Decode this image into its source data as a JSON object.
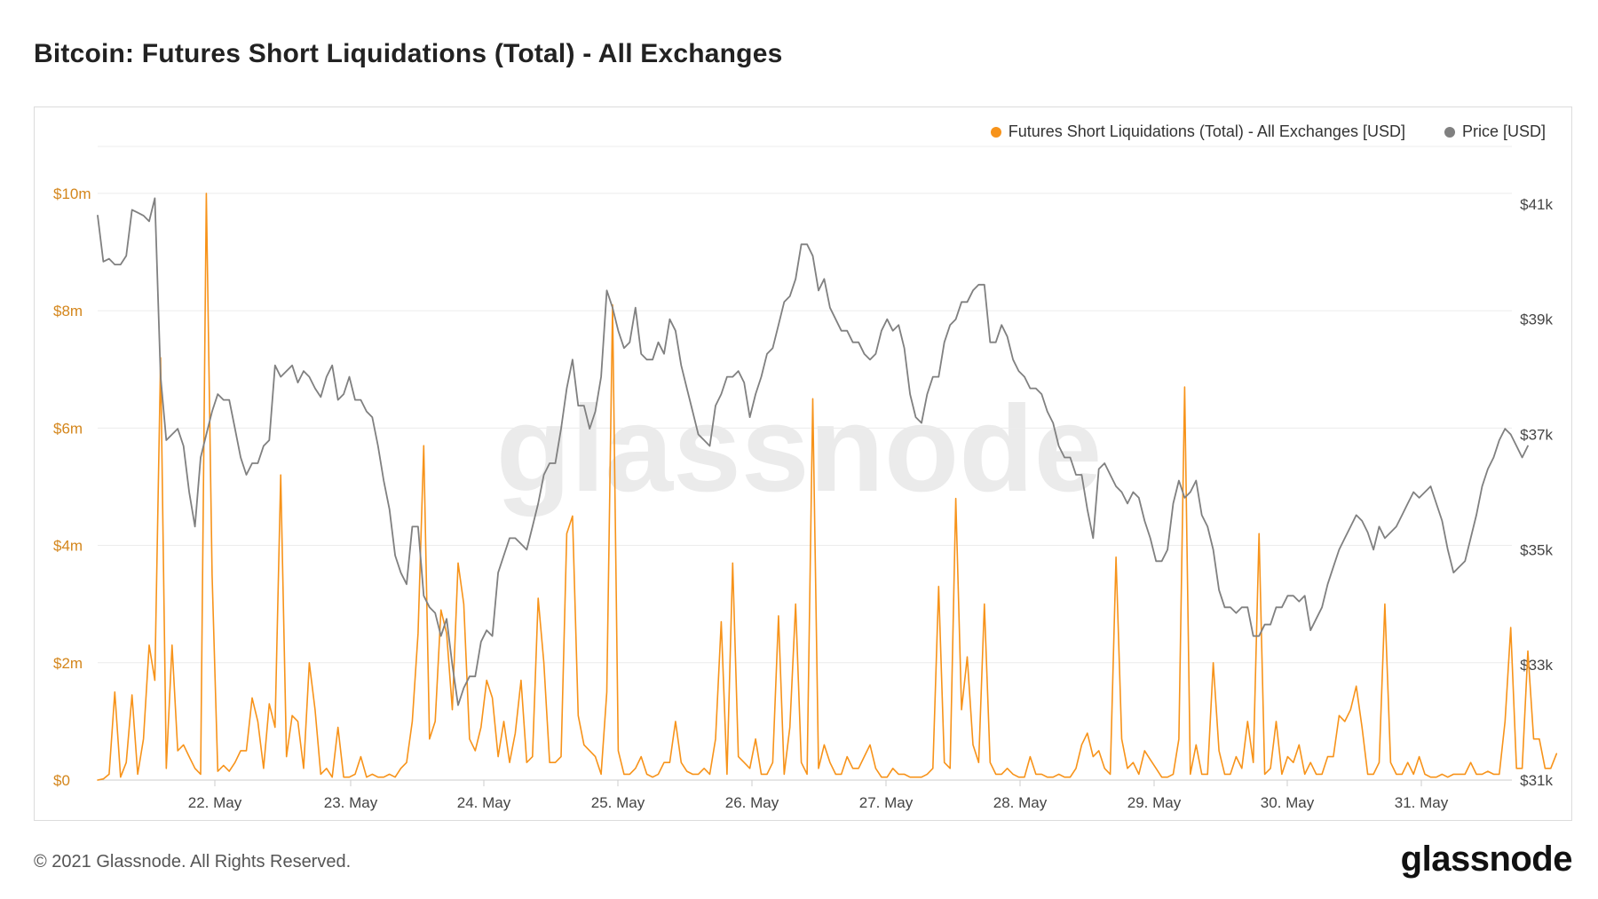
{
  "title": "Bitcoin: Futures Short Liquidations (Total) - All Exchanges",
  "watermark": "glassnode",
  "footer": {
    "copyright": "© 2021 Glassnode. All Rights Reserved.",
    "logo": "glassnode"
  },
  "colors": {
    "liquidations": "#f7931a",
    "price": "#808080",
    "left_axis_text": "#d4861c",
    "grid": "#ececec",
    "watermark": "#ebebeb"
  },
  "chart_data": {
    "type": "line",
    "x_ticks": [
      "22. May",
      "23. May",
      "24. May",
      "25. May",
      "26. May",
      "27. May",
      "28. May",
      "29. May",
      "30. May",
      "31. May"
    ],
    "x_range_days": [
      21.35,
      31.65
    ],
    "left_axis": {
      "ticks": [
        "$0",
        "$2m",
        "$4m",
        "$6m",
        "$8m",
        "$10m"
      ],
      "tick_values": [
        0,
        2000000,
        4000000,
        6000000,
        8000000,
        10000000
      ],
      "ylim": [
        0,
        10800000
      ]
    },
    "right_axis": {
      "ticks": [
        "$31k",
        "$33k",
        "$35k",
        "$37k",
        "$39k",
        "$41k"
      ],
      "tick_values": [
        31000,
        33000,
        35000,
        37000,
        39000,
        41000
      ],
      "ylim": [
        31000,
        42000
      ]
    },
    "legend": {
      "placement": "top-right",
      "items": [
        "Futures Short Liquidations (Total) - All Exchanges [USD]",
        "Price [USD]"
      ]
    },
    "grid": true,
    "series": [
      {
        "name": "Futures Short Liquidations (Total) - All Exchanges [USD]",
        "axis": "left",
        "x_start_day": 21.35,
        "interval_hours": 1,
        "values": [
          0,
          0.02,
          0.1,
          1.5,
          0.05,
          0.3,
          1.45,
          0.1,
          0.7,
          2.3,
          1.7,
          7.2,
          0.2,
          2.3,
          0.5,
          0.6,
          0.4,
          0.2,
          0.1,
          10,
          3.5,
          0.15,
          0.25,
          0.15,
          0.3,
          0.5,
          0.5,
          1.4,
          1,
          0.2,
          1.3,
          0.9,
          5.2,
          0.4,
          1.1,
          1,
          0.2,
          2,
          1.2,
          0.1,
          0.2,
          0.05,
          0.9,
          0.05,
          0.05,
          0.1,
          0.4,
          0.05,
          0.1,
          0.05,
          0.05,
          0.1,
          0.05,
          0.2,
          0.3,
          1,
          2.5,
          5.7,
          0.7,
          1,
          2.9,
          2.5,
          1.2,
          3.7,
          3,
          0.7,
          0.5,
          0.9,
          1.7,
          1.4,
          0.4,
          1,
          0.3,
          0.8,
          1.7,
          0.3,
          0.4,
          3.1,
          2,
          0.3,
          0.3,
          0.4,
          4.2,
          4.5,
          1.1,
          0.6,
          0.5,
          0.4,
          0.1,
          1.5,
          8.1,
          0.5,
          0.1,
          0.1,
          0.2,
          0.4,
          0.1,
          0.05,
          0.1,
          0.3,
          0.3,
          1,
          0.3,
          0.15,
          0.1,
          0.1,
          0.2,
          0.1,
          0.7,
          2.7,
          0.1,
          3.7,
          0.4,
          0.3,
          0.2,
          0.7,
          0.1,
          0.1,
          0.3,
          2.8,
          0.1,
          0.9,
          3,
          0.3,
          0.1,
          6.5,
          0.2,
          0.6,
          0.3,
          0.1,
          0.1,
          0.4,
          0.2,
          0.2,
          0.4,
          0.6,
          0.2,
          0.05,
          0.05,
          0.2,
          0.1,
          0.1,
          0.05,
          0.05,
          0.05,
          0.1,
          0.2,
          3.3,
          0.3,
          0.2,
          4.8,
          1.2,
          2.1,
          0.6,
          0.3,
          3,
          0.3,
          0.1,
          0.1,
          0.2,
          0.1,
          0.05,
          0.05,
          0.4,
          0.1,
          0.1,
          0.05,
          0.05,
          0.1,
          0.05,
          0.05,
          0.2,
          0.6,
          0.8,
          0.4,
          0.5,
          0.2,
          0.1,
          3.8,
          0.7,
          0.2,
          0.3,
          0.1,
          0.5,
          0.35,
          0.2,
          0.05,
          0.05,
          0.1,
          0.7,
          6.7,
          0.1,
          0.6,
          0.1,
          0.1,
          2,
          0.5,
          0.1,
          0.1,
          0.4,
          0.2,
          1,
          0.3,
          4.2,
          0.1,
          0.2,
          1,
          0.1,
          0.4,
          0.3,
          0.6,
          0.1,
          0.3,
          0.1,
          0.1,
          0.4,
          0.4,
          1.1,
          1,
          1.2,
          1.6,
          0.9,
          0.1,
          0.1,
          0.3,
          3,
          0.3,
          0.1,
          0.1,
          0.3,
          0.1,
          0.4,
          0.1,
          0.05,
          0.05,
          0.1,
          0.05,
          0.1,
          0.1,
          0.1,
          0.3,
          0.1,
          0.1,
          0.15,
          0.1,
          0.1,
          1,
          2.6,
          0.2,
          0.2,
          2.2,
          0.7,
          0.7,
          0.2,
          0.2,
          0.45
        ]
      },
      {
        "name": "Price [USD]",
        "axis": "right",
        "x_start_day": 21.35,
        "interval_hours": 1,
        "values": [
          40800,
          40000,
          40050,
          39950,
          39950,
          40100,
          40900,
          40850,
          40800,
          40700,
          41100,
          38000,
          36900,
          37000,
          37100,
          36800,
          36000,
          35400,
          36600,
          37000,
          37400,
          37700,
          37600,
          37600,
          37100,
          36600,
          36300,
          36500,
          36500,
          36800,
          36900,
          38200,
          38000,
          38100,
          38200,
          37900,
          38100,
          38000,
          37800,
          37650,
          38000,
          38200,
          37600,
          37700,
          38000,
          37600,
          37600,
          37400,
          37300,
          36800,
          36200,
          35700,
          34900,
          34600,
          34400,
          35400,
          35400,
          34200,
          34000,
          33900,
          33500,
          33800,
          33000,
          32300,
          32600,
          32800,
          32800,
          33400,
          33600,
          33500,
          34600,
          34900,
          35200,
          35200,
          35100,
          35000,
          35400,
          35800,
          36300,
          36500,
          36500,
          37100,
          37800,
          38300,
          37500,
          37500,
          37100,
          37400,
          38000,
          39500,
          39200,
          38800,
          38500,
          38600,
          39200,
          38400,
          38300,
          38300,
          38600,
          38400,
          39000,
          38800,
          38200,
          37800,
          37400,
          37000,
          36900,
          36800,
          37500,
          37700,
          38000,
          38000,
          38100,
          37900,
          37300,
          37700,
          38000,
          38400,
          38500,
          38900,
          39300,
          39400,
          39700,
          40300,
          40300,
          40100,
          39500,
          39700,
          39200,
          39000,
          38800,
          38800,
          38600,
          38600,
          38400,
          38300,
          38400,
          38800,
          39000,
          38800,
          38900,
          38500,
          37700,
          37300,
          37200,
          37700,
          38000,
          38000,
          38600,
          38900,
          39000,
          39300,
          39300,
          39500,
          39600,
          39600,
          38600,
          38600,
          38900,
          38700,
          38300,
          38100,
          38000,
          37800,
          37800,
          37700,
          37400,
          37200,
          36800,
          36600,
          36600,
          36300,
          36300,
          35700,
          35200,
          36400,
          36500,
          36300,
          36100,
          36000,
          35800,
          36000,
          35900,
          35500,
          35200,
          34800,
          34800,
          35000,
          35800,
          36200,
          35900,
          36000,
          36200,
          35600,
          35400,
          35000,
          34300,
          34000,
          34000,
          33900,
          34000,
          34000,
          33500,
          33500,
          33700,
          33700,
          34000,
          34000,
          34200,
          34200,
          34100,
          34200,
          33600,
          33800,
          34000,
          34400,
          34700,
          35000,
          35200,
          35400,
          35600,
          35500,
          35300,
          35000,
          35400,
          35200,
          35300,
          35400,
          35600,
          35800,
          36000,
          35900,
          36000,
          36100,
          35800,
          35500,
          35000,
          34600,
          34700,
          34800,
          35200,
          35600,
          36100,
          36400,
          36600,
          36900,
          37100,
          37000,
          36800,
          36600,
          36800
        ]
      }
    ]
  }
}
